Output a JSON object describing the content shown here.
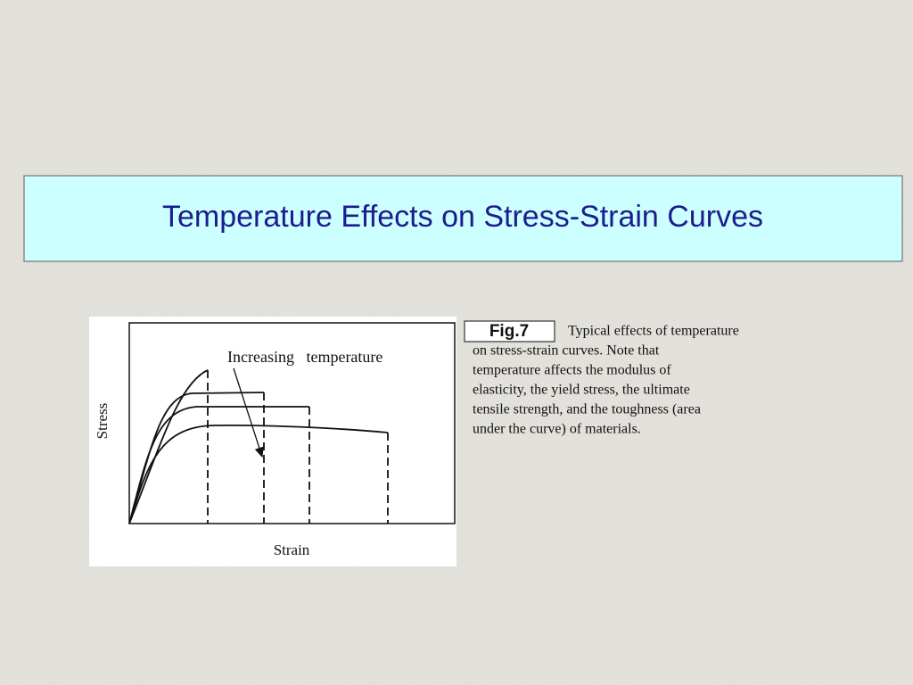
{
  "slide": {
    "title": "Temperature Effects on Stress-Strain Curves",
    "figure": {
      "annotation": "Increasing   temperature",
      "y_label": "Stress",
      "x_label": "Strain"
    },
    "caption": {
      "label": "Fig.7",
      "lines": [
        "Typical effects of temperature",
        "on stress-strain curves.  Note that",
        "temperature affects the modulus of",
        "elasticity, the yield stress, the ultimate",
        "tensile strength, and the toughness (area",
        "under the curve) of materials."
      ]
    }
  }
}
